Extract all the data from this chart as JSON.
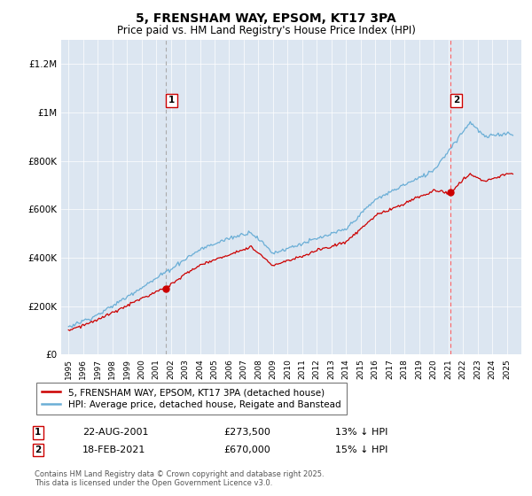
{
  "title": "5, FRENSHAM WAY, EPSOM, KT17 3PA",
  "subtitle": "Price paid vs. HM Land Registry's House Price Index (HPI)",
  "ylim": [
    0,
    1300000
  ],
  "yticks": [
    0,
    200000,
    400000,
    600000,
    800000,
    1000000,
    1200000
  ],
  "ytick_labels": [
    "£0",
    "£200K",
    "£400K",
    "£600K",
    "£800K",
    "£1M",
    "£1.2M"
  ],
  "sale1_date": 2001.64,
  "sale1_price": 273500,
  "sale1_label": "1",
  "sale2_date": 2021.12,
  "sale2_price": 670000,
  "sale2_label": "2",
  "hpi_color": "#6aaed6",
  "price_color": "#cc0000",
  "vline1_color": "#888888",
  "vline2_color": "#ff6666",
  "background_color": "#dce6f1",
  "legend1": "5, FRENSHAM WAY, EPSOM, KT17 3PA (detached house)",
  "legend2": "HPI: Average price, detached house, Reigate and Banstead",
  "annotation1_date": "22-AUG-2001",
  "annotation1_price": "£273,500",
  "annotation1_hpi": "13% ↓ HPI",
  "annotation2_date": "18-FEB-2021",
  "annotation2_price": "£670,000",
  "annotation2_hpi": "15% ↓ HPI",
  "footer": "Contains HM Land Registry data © Crown copyright and database right 2025.\nThis data is licensed under the Open Government Licence v3.0."
}
